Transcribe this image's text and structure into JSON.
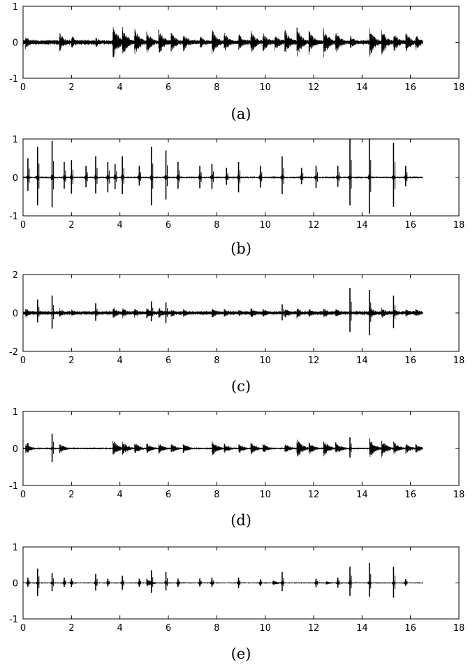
{
  "chart_data": [
    {
      "type": "line",
      "caption": "(a)",
      "xlim": [
        0,
        18
      ],
      "ylim": [
        -1,
        1
      ],
      "x_ticks": [
        "0",
        "2",
        "4",
        "6",
        "8",
        "10",
        "12",
        "14",
        "16",
        "18"
      ],
      "y_ticks": [
        "1",
        "0",
        "-1"
      ],
      "signal_end": 16.5,
      "baseline_amplitude": 0.08,
      "spike_amplitude": 0.1,
      "onsets": [
        [
          0.1,
          0.2
        ],
        [
          1.5,
          0.3
        ],
        [
          2.0,
          0.2
        ],
        [
          3.0,
          0.15
        ],
        [
          3.7,
          0.55
        ],
        [
          4.1,
          0.45
        ],
        [
          4.6,
          0.42
        ],
        [
          5.1,
          0.35
        ],
        [
          5.6,
          0.38
        ],
        [
          6.1,
          0.32
        ],
        [
          6.6,
          0.3
        ],
        [
          7.3,
          0.2
        ],
        [
          7.8,
          0.38
        ],
        [
          8.3,
          0.3
        ],
        [
          8.9,
          0.25
        ],
        [
          9.4,
          0.35
        ],
        [
          9.9,
          0.3
        ],
        [
          10.4,
          0.25
        ],
        [
          10.8,
          0.4
        ],
        [
          11.3,
          0.45
        ],
        [
          11.8,
          0.35
        ],
        [
          12.4,
          0.45
        ],
        [
          12.9,
          0.35
        ],
        [
          13.5,
          0.2
        ],
        [
          14.3,
          0.45
        ],
        [
          14.8,
          0.4
        ],
        [
          15.3,
          0.3
        ],
        [
          15.8,
          0.3
        ],
        [
          16.2,
          0.25
        ]
      ],
      "spikes": []
    },
    {
      "type": "line",
      "caption": "(b)",
      "xlim": [
        0,
        18
      ],
      "ylim": [
        -1,
        1
      ],
      "x_ticks": [
        "0",
        "2",
        "4",
        "6",
        "8",
        "10",
        "12",
        "14",
        "16",
        "18"
      ],
      "y_ticks": [
        "1",
        "0",
        "-1"
      ],
      "signal_end": 16.5,
      "baseline_amplitude": 0.03,
      "spike_amplitude": 0.15,
      "onsets": [],
      "spikes": [
        [
          0.2,
          0.5
        ],
        [
          0.6,
          0.8
        ],
        [
          1.2,
          0.95
        ],
        [
          1.7,
          0.4
        ],
        [
          2.0,
          0.45
        ],
        [
          2.6,
          0.3
        ],
        [
          3.0,
          0.55
        ],
        [
          3.5,
          0.4
        ],
        [
          3.8,
          0.35
        ],
        [
          4.1,
          0.55
        ],
        [
          4.8,
          0.3
        ],
        [
          5.3,
          0.8
        ],
        [
          5.9,
          0.7
        ],
        [
          6.4,
          0.4
        ],
        [
          7.3,
          0.3
        ],
        [
          7.8,
          0.35
        ],
        [
          8.4,
          0.25
        ],
        [
          8.9,
          0.4
        ],
        [
          9.8,
          0.3
        ],
        [
          10.7,
          0.55
        ],
        [
          11.5,
          0.25
        ],
        [
          12.1,
          0.3
        ],
        [
          13.0,
          0.3
        ],
        [
          13.5,
          1.0
        ],
        [
          14.3,
          1.0
        ],
        [
          15.3,
          0.9
        ],
        [
          15.8,
          0.3
        ]
      ]
    },
    {
      "type": "line",
      "caption": "(c)",
      "xlim": [
        0,
        18
      ],
      "ylim": [
        -2,
        2
      ],
      "x_ticks": [
        "0",
        "2",
        "4",
        "6",
        "8",
        "10",
        "12",
        "14",
        "16",
        "18"
      ],
      "y_ticks": [
        "2",
        "0",
        "-2"
      ],
      "signal_end": 16.5,
      "baseline_amplitude": 0.12,
      "spike_amplitude": 0.2,
      "onsets": [
        [
          0.1,
          0.25
        ],
        [
          1.5,
          0.25
        ],
        [
          2.0,
          0.2
        ],
        [
          3.7,
          0.35
        ],
        [
          4.1,
          0.3
        ],
        [
          4.6,
          0.25
        ],
        [
          5.1,
          0.3
        ],
        [
          5.6,
          0.3
        ],
        [
          6.1,
          0.25
        ],
        [
          6.6,
          0.25
        ],
        [
          7.8,
          0.3
        ],
        [
          8.3,
          0.25
        ],
        [
          8.9,
          0.2
        ],
        [
          9.4,
          0.3
        ],
        [
          9.9,
          0.25
        ],
        [
          10.8,
          0.3
        ],
        [
          11.3,
          0.3
        ],
        [
          11.8,
          0.25
        ],
        [
          12.4,
          0.3
        ],
        [
          12.9,
          0.25
        ],
        [
          14.3,
          0.35
        ],
        [
          14.8,
          0.3
        ],
        [
          15.3,
          0.25
        ],
        [
          15.8,
          0.25
        ],
        [
          16.2,
          0.25
        ]
      ],
      "spikes": [
        [
          0.6,
          0.7
        ],
        [
          1.2,
          0.9
        ],
        [
          3.0,
          0.5
        ],
        [
          5.3,
          0.6
        ],
        [
          5.9,
          0.55
        ],
        [
          10.7,
          0.45
        ],
        [
          13.5,
          1.3
        ],
        [
          14.3,
          1.2
        ],
        [
          15.3,
          0.9
        ]
      ]
    },
    {
      "type": "line",
      "caption": "(d)",
      "xlim": [
        0,
        18
      ],
      "ylim": [
        -1,
        1
      ],
      "x_ticks": [
        "0",
        "2",
        "4",
        "6",
        "8",
        "10",
        "12",
        "14",
        "16",
        "18"
      ],
      "y_ticks": [
        "1",
        "0",
        "-1"
      ],
      "signal_end": 16.5,
      "baseline_amplitude": 0.03,
      "spike_amplitude": 0.1,
      "onsets": [
        [
          0.1,
          0.15
        ],
        [
          1.5,
          0.15
        ],
        [
          3.7,
          0.25
        ],
        [
          4.1,
          0.2
        ],
        [
          4.6,
          0.18
        ],
        [
          5.1,
          0.15
        ],
        [
          5.6,
          0.15
        ],
        [
          6.1,
          0.15
        ],
        [
          6.6,
          0.15
        ],
        [
          7.8,
          0.22
        ],
        [
          8.3,
          0.15
        ],
        [
          8.9,
          0.15
        ],
        [
          9.4,
          0.18
        ],
        [
          9.9,
          0.15
        ],
        [
          10.8,
          0.15
        ],
        [
          11.3,
          0.28
        ],
        [
          11.8,
          0.18
        ],
        [
          12.4,
          0.25
        ],
        [
          12.9,
          0.2
        ],
        [
          14.3,
          0.3
        ],
        [
          14.8,
          0.25
        ],
        [
          15.3,
          0.2
        ],
        [
          15.8,
          0.15
        ],
        [
          16.2,
          0.15
        ]
      ],
      "spikes": [
        [
          0.2,
          0.15
        ],
        [
          1.2,
          0.4
        ],
        [
          13.5,
          0.3
        ]
      ]
    },
    {
      "type": "line",
      "caption": "(e)",
      "xlim": [
        0,
        18
      ],
      "ylim": [
        -1,
        1
      ],
      "x_ticks": [
        "0",
        "2",
        "4",
        "6",
        "8",
        "10",
        "12",
        "14",
        "16",
        "18"
      ],
      "y_ticks": [
        "1",
        "0",
        "-1"
      ],
      "signal_end": 16.5,
      "baseline_amplitude": 0.02,
      "spike_amplitude": 0.12,
      "onsets": [
        [
          5.1,
          0.12
        ],
        [
          10.3,
          0.08
        ],
        [
          12.5,
          0.06
        ]
      ],
      "spikes": [
        [
          0.2,
          0.15
        ],
        [
          0.6,
          0.4
        ],
        [
          1.2,
          0.28
        ],
        [
          1.7,
          0.15
        ],
        [
          2.0,
          0.12
        ],
        [
          3.0,
          0.25
        ],
        [
          3.5,
          0.12
        ],
        [
          4.1,
          0.2
        ],
        [
          4.8,
          0.12
        ],
        [
          5.3,
          0.35
        ],
        [
          5.9,
          0.3
        ],
        [
          6.4,
          0.12
        ],
        [
          7.3,
          0.12
        ],
        [
          7.8,
          0.15
        ],
        [
          8.9,
          0.15
        ],
        [
          9.8,
          0.1
        ],
        [
          10.7,
          0.3
        ],
        [
          12.1,
          0.12
        ],
        [
          13.0,
          0.15
        ],
        [
          13.5,
          0.45
        ],
        [
          14.3,
          0.55
        ],
        [
          15.3,
          0.45
        ],
        [
          15.8,
          0.1
        ]
      ]
    }
  ]
}
